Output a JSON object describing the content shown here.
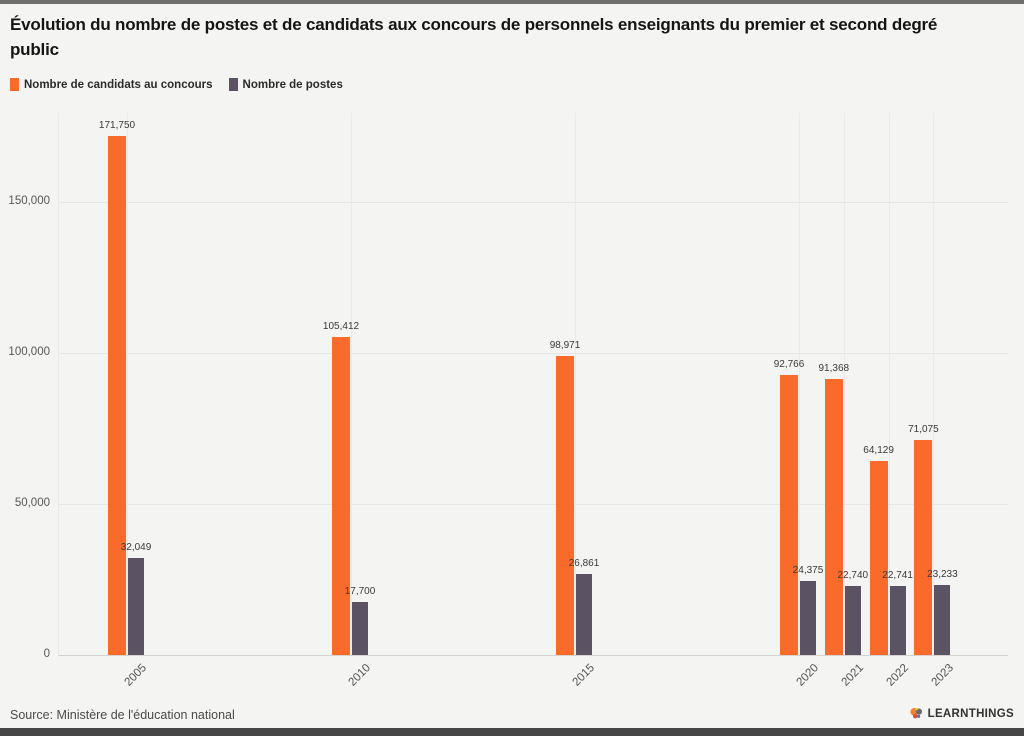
{
  "page": {
    "title": "Évolution du nombre de postes et de candidats aux concours de personnels enseignants du premier et second degré public"
  },
  "legend": [
    {
      "label": "Nombre de candidats au concours",
      "color": "#fa6a2b"
    },
    {
      "label": "Nombre de postes",
      "color": "#5b5264"
    }
  ],
  "footer": {
    "source": "Source: Ministère de l'éducation national",
    "brand": "LEARNTHINGS"
  },
  "chart_data": {
    "type": "bar",
    "title": "Évolution du nombre de postes et de candidats aux concours de personnels enseignants du premier et second degré public",
    "categories": [
      "2005",
      "2010",
      "2015",
      "2020",
      "2021",
      "2022",
      "2023"
    ],
    "series": [
      {
        "name": "Nombre de candidats au concours",
        "color": "#fa6a2b",
        "values": [
          171750,
          105412,
          98971,
          92766,
          91368,
          64129,
          71075
        ]
      },
      {
        "name": "Nombre de postes",
        "color": "#5b5264",
        "values": [
          32049,
          17700,
          26861,
          24375,
          22740,
          22741,
          23233
        ]
      }
    ],
    "xlabel": "",
    "ylabel": "",
    "ylim": [
      0,
      175000
    ],
    "yticks": [
      {
        "value": 0,
        "label": "0"
      },
      {
        "value": 50000,
        "label": "50,000"
      },
      {
        "value": 100000,
        "label": "100,000"
      },
      {
        "value": 150000,
        "label": "150,000"
      }
    ],
    "grid": true,
    "legend_position": "top-left",
    "x_axis_linear_years": true
  }
}
